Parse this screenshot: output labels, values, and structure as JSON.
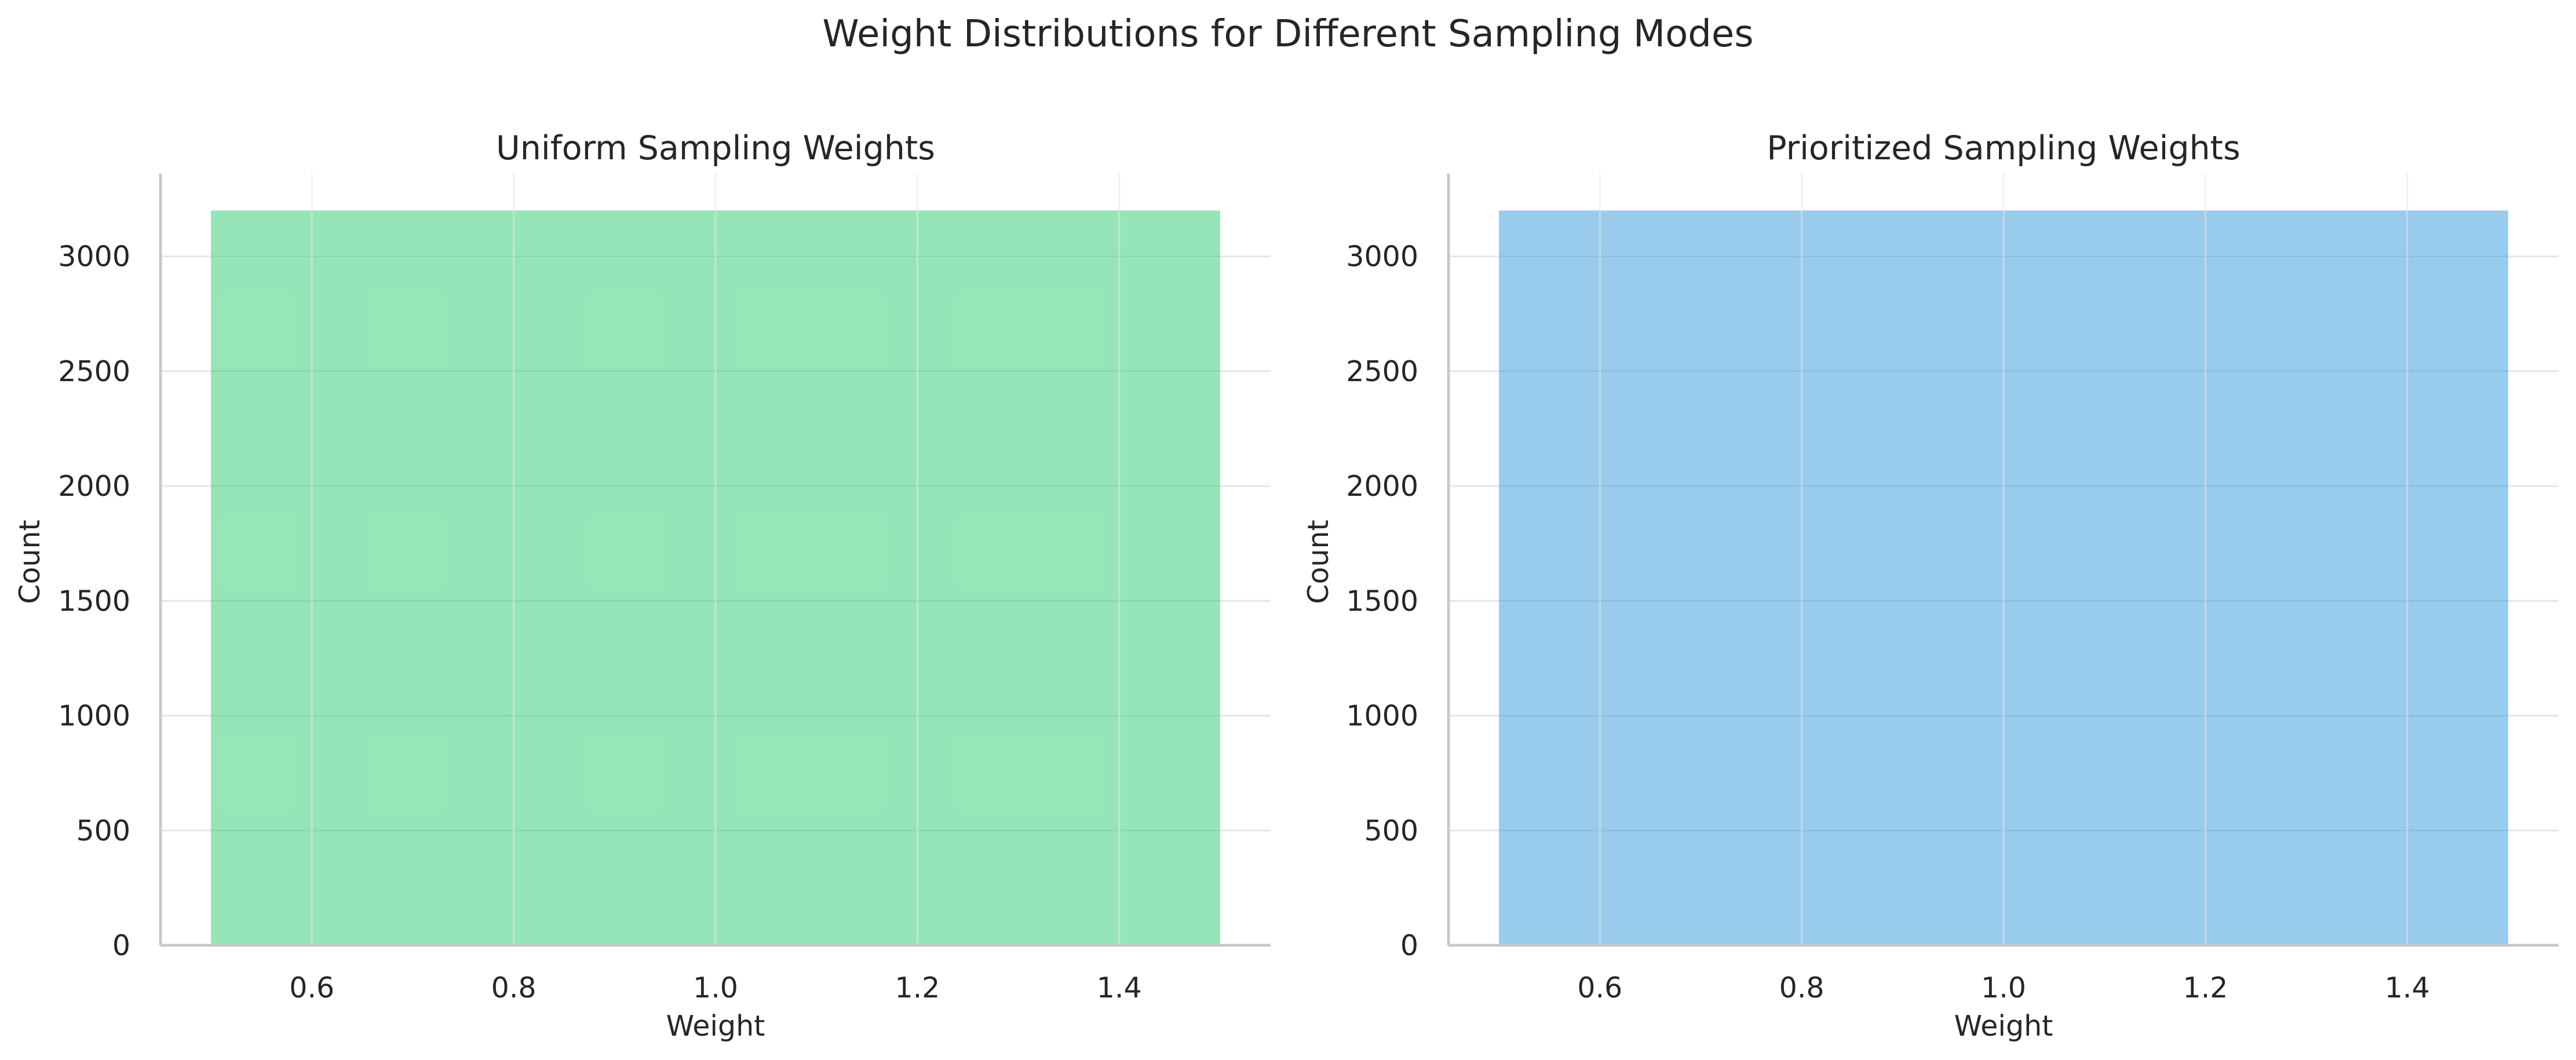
{
  "figure": {
    "suptitle": "Weight Distributions for Different Sampling Modes"
  },
  "chart_data": [
    {
      "type": "bar",
      "title": "Uniform Sampling Weights",
      "xlabel": "Weight",
      "ylabel": "Count",
      "xlim": [
        0.45,
        1.55
      ],
      "ylim": [
        0,
        3360
      ],
      "xticks": [
        0.6,
        0.8,
        1.0,
        1.2,
        1.4
      ],
      "xtick_labels": [
        "0.6",
        "0.8",
        "1.0",
        "1.2",
        "1.4"
      ],
      "yticks": [
        0,
        500,
        1000,
        1500,
        2000,
        2500,
        3000
      ],
      "ytick_labels": [
        "0",
        "500",
        "1000",
        "1500",
        "2000",
        "2500",
        "3000"
      ],
      "bins": [
        {
          "x0": 0.5,
          "x1": 1.5,
          "count": 3200
        }
      ],
      "color": "#2ecc71",
      "opacity": 0.5,
      "grid": true
    },
    {
      "type": "bar",
      "title": "Prioritized Sampling Weights",
      "xlabel": "Weight",
      "ylabel": "Count",
      "xlim": [
        0.45,
        1.55
      ],
      "ylim": [
        0,
        3360
      ],
      "xticks": [
        0.6,
        0.8,
        1.0,
        1.2,
        1.4
      ],
      "xtick_labels": [
        "0.6",
        "0.8",
        "1.0",
        "1.2",
        "1.4"
      ],
      "yticks": [
        0,
        500,
        1000,
        1500,
        2000,
        2500,
        3000
      ],
      "ytick_labels": [
        "0",
        "500",
        "1000",
        "1500",
        "2000",
        "2500",
        "3000"
      ],
      "bins": [
        {
          "x0": 0.5,
          "x1": 1.5,
          "count": 3200
        }
      ],
      "color": "#3498db",
      "opacity": 0.5,
      "grid": true
    }
  ]
}
